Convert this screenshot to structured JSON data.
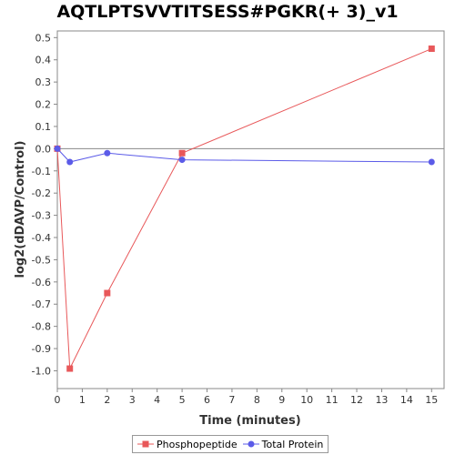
{
  "chart_data": {
    "type": "line",
    "title": "AQTLPTSVVTITSESS#PGKR(+ 3)_v1",
    "xlabel": "Time (minutes)",
    "ylabel": "log2(dDAVP/Control)",
    "xlim": [
      0,
      15.5
    ],
    "ylim": [
      -1.08,
      0.53
    ],
    "x_ticks": [
      "0",
      "1",
      "2",
      "3",
      "4",
      "5",
      "6",
      "7",
      "8",
      "9",
      "10",
      "11",
      "12",
      "13",
      "14",
      "15"
    ],
    "y_ticks": [
      "0.5",
      "0.4",
      "0.3",
      "0.2",
      "0.1",
      "0.0",
      "-0.1",
      "-0.2",
      "-0.3",
      "-0.4",
      "-0.5",
      "-0.6",
      "-0.7",
      "-0.8",
      "-0.9",
      "-1.0"
    ],
    "grid": false,
    "legend_position": "bottom",
    "series": [
      {
        "name": "Phosphopeptide",
        "color": "#e8585a",
        "marker": "square",
        "x": [
          0,
          0.5,
          2,
          5,
          15
        ],
        "y": [
          0.0,
          -0.99,
          -0.65,
          -0.02,
          0.45
        ]
      },
      {
        "name": "Total Protein",
        "color": "#5b5be8",
        "marker": "circle",
        "x": [
          0,
          0.5,
          2,
          5,
          15
        ],
        "y": [
          0.0,
          -0.06,
          -0.02,
          -0.05,
          -0.06
        ]
      }
    ]
  }
}
